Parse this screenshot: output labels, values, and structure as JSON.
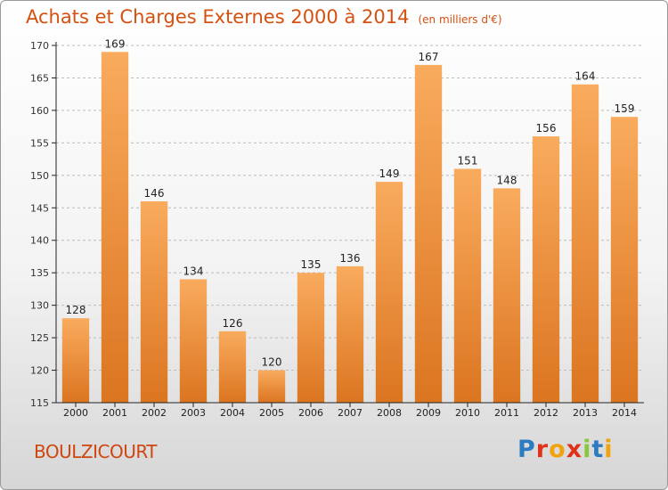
{
  "title": "Achats et Charges Externes 2000 à 2014",
  "unit": "(en milliers d'€)",
  "location": "BOULZICOURT",
  "brand": "Proxiti",
  "colors": {
    "title": "#d6500f",
    "bar_light": "#f9ab5e",
    "bar_dark": "#db7520",
    "axis": "#222222",
    "grid": "#bcbcbc"
  },
  "chart_data": {
    "type": "bar",
    "title": "Achats et Charges Externes 2000 à 2014",
    "categories": [
      "2000",
      "2001",
      "2002",
      "2003",
      "2004",
      "2005",
      "2006",
      "2007",
      "2008",
      "2009",
      "2010",
      "2011",
      "2012",
      "2013",
      "2014"
    ],
    "values": [
      128,
      169,
      146,
      134,
      126,
      120,
      135,
      136,
      149,
      167,
      151,
      148,
      156,
      164,
      159
    ],
    "ylim": [
      115,
      170
    ],
    "yticks": [
      115,
      120,
      125,
      130,
      135,
      140,
      145,
      150,
      155,
      160,
      165,
      170
    ],
    "grid": true,
    "data_labels": true
  }
}
